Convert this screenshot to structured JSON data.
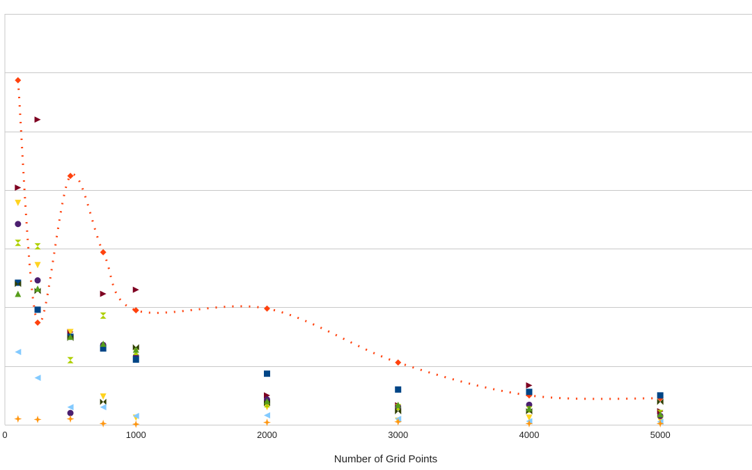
{
  "chart_data": {
    "type": "scatter",
    "title": "",
    "xlabel": "Number of Grid Points",
    "ylabel": "",
    "xlim": [
      0,
      5700
    ],
    "ylim": [
      0,
      7
    ],
    "x_ticks": [
      0,
      1000,
      2000,
      3000,
      4000,
      5000
    ],
    "x_tick_labels": [
      "0",
      "1000",
      "2000",
      "3000",
      "4000",
      "5000"
    ],
    "y_gridlines": [
      0,
      1,
      2,
      3,
      4,
      5,
      6,
      7
    ],
    "y_tick_labels_visible": false,
    "grid": true,
    "legend": "none",
    "series": [
      {
        "marker": "diamond",
        "color": "#ff420e",
        "trendline": true,
        "points": [
          [
            100,
            5.87
          ],
          [
            250,
            1.74
          ],
          [
            500,
            4.24
          ],
          [
            750,
            2.94
          ],
          [
            1000,
            1.95
          ],
          [
            2000,
            1.98
          ],
          [
            3000,
            1.06
          ],
          [
            4000,
            0.5
          ],
          [
            5000,
            0.45
          ]
        ]
      },
      {
        "marker": "triangle-right",
        "color": "#7e0021",
        "points": [
          [
            100,
            4.04
          ],
          [
            250,
            5.2
          ],
          [
            500,
            1.58
          ],
          [
            750,
            2.23
          ],
          [
            1000,
            2.3
          ],
          [
            2000,
            0.5
          ],
          [
            3000,
            0.33
          ],
          [
            4000,
            0.67
          ],
          [
            5000,
            0.23
          ]
        ]
      },
      {
        "marker": "triangle-down",
        "color": "#ffd320",
        "points": [
          [
            100,
            3.78
          ],
          [
            250,
            2.72
          ],
          [
            500,
            1.58
          ],
          [
            750,
            0.48
          ],
          [
            1000,
            0.12
          ],
          [
            2000,
            0.3
          ],
          [
            3000,
            0.07
          ],
          [
            4000,
            0.12
          ],
          [
            5000,
            0.08
          ]
        ]
      },
      {
        "marker": "circle",
        "color": "#4b1f6f",
        "points": [
          [
            100,
            3.42
          ],
          [
            250,
            2.46
          ],
          [
            500,
            0.2
          ],
          [
            750,
            1.36
          ],
          [
            1000,
            1.17
          ],
          [
            2000,
            0.43
          ],
          [
            3000,
            0.3
          ],
          [
            4000,
            0.34
          ],
          [
            5000,
            0.15
          ]
        ]
      },
      {
        "marker": "hourglass",
        "color": "#aecf00",
        "points": [
          [
            100,
            3.1
          ],
          [
            250,
            3.04
          ],
          [
            500,
            1.1
          ],
          [
            750,
            1.86
          ],
          [
            1000,
            1.24
          ],
          [
            2000,
            0.35
          ],
          [
            3000,
            0.3
          ],
          [
            4000,
            0.26
          ],
          [
            5000,
            0.2
          ]
        ]
      },
      {
        "marker": "square",
        "color": "#004586",
        "points": [
          [
            100,
            2.42
          ],
          [
            250,
            1.96
          ],
          [
            500,
            1.5
          ],
          [
            750,
            1.3
          ],
          [
            1000,
            1.11
          ],
          [
            2000,
            0.87
          ],
          [
            3000,
            0.6
          ],
          [
            4000,
            0.56
          ],
          [
            5000,
            0.5
          ]
        ]
      },
      {
        "marker": "bowtie",
        "color": "#314004",
        "points": [
          [
            100,
            2.4
          ],
          [
            250,
            2.28
          ],
          [
            500,
            1.48
          ],
          [
            750,
            0.39
          ],
          [
            1000,
            1.32
          ],
          [
            2000,
            0.37
          ],
          [
            3000,
            0.23
          ],
          [
            4000,
            0.23
          ],
          [
            5000,
            0.39
          ]
        ]
      },
      {
        "marker": "triangle-up",
        "color": "#579d1c",
        "points": [
          [
            100,
            2.23
          ],
          [
            250,
            2.32
          ],
          [
            500,
            1.5
          ],
          [
            750,
            1.38
          ],
          [
            1000,
            1.28
          ],
          [
            2000,
            0.4
          ],
          [
            3000,
            0.34
          ],
          [
            4000,
            0.28
          ],
          [
            5000,
            0.18
          ]
        ]
      },
      {
        "marker": "triangle-left",
        "color": "#83caff",
        "points": [
          [
            100,
            1.24
          ],
          [
            250,
            0.8
          ],
          [
            500,
            0.3
          ],
          [
            750,
            0.3
          ],
          [
            1000,
            0.15
          ],
          [
            2000,
            0.16
          ],
          [
            3000,
            0.1
          ],
          [
            4000,
            0.06
          ],
          [
            5000,
            0.05
          ]
        ]
      },
      {
        "marker": "star",
        "color": "#ff950e",
        "points": [
          [
            100,
            0.1
          ],
          [
            250,
            0.09
          ],
          [
            500,
            0.1
          ],
          [
            750,
            0.02
          ],
          [
            1000,
            0.01
          ],
          [
            2000,
            0.04
          ],
          [
            3000,
            0.05
          ],
          [
            4000,
            0.02
          ],
          [
            5000,
            0.02
          ]
        ]
      }
    ]
  }
}
